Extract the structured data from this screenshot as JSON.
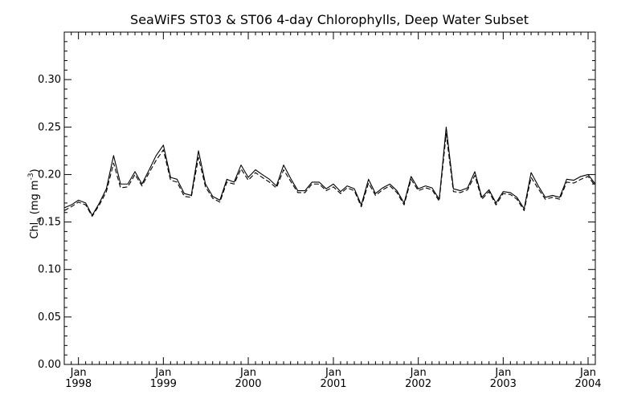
{
  "chart_data": {
    "type": "line",
    "title": "SeaWiFS ST03 & ST06 4-day Chlorophylls, Deep Water Subset",
    "ylabel": "Chl",
    "ylabel_sub": "a",
    "ylabel_units_open": "(mg m",
    "ylabel_units_sup": "-3",
    "ylabel_units_close": ")",
    "xlim": [
      "1997-11-01",
      "2004-02-01"
    ],
    "ylim": [
      0.0,
      0.35
    ],
    "grid": false,
    "y_ticks": [
      {
        "value": 0.0,
        "label": "0.00"
      },
      {
        "value": 0.05,
        "label": "0.05"
      },
      {
        "value": 0.1,
        "label": "0.10"
      },
      {
        "value": 0.15,
        "label": "0.15"
      },
      {
        "value": 0.2,
        "label": "0.20"
      },
      {
        "value": 0.25,
        "label": "0.25"
      },
      {
        "value": 0.3,
        "label": "0.30"
      }
    ],
    "x_ticks": [
      {
        "date": "1998-01-01",
        "month": "Jan",
        "year": "1998"
      },
      {
        "date": "1999-01-01",
        "month": "Jan",
        "year": "1999"
      },
      {
        "date": "2000-01-01",
        "month": "Jan",
        "year": "2000"
      },
      {
        "date": "2001-01-01",
        "month": "Jan",
        "year": "2001"
      },
      {
        "date": "2002-01-01",
        "month": "Jan",
        "year": "2002"
      },
      {
        "date": "2003-01-01",
        "month": "Jan",
        "year": "2003"
      },
      {
        "date": "2004-01-01",
        "month": "Jan",
        "year": "2004"
      }
    ],
    "series": [
      {
        "style": "solid",
        "color": "#000000",
        "x": [
          "1997-11-01",
          "1997-12-01",
          "1998-01-01",
          "1998-02-01",
          "1998-03-01",
          "1998-04-01",
          "1998-05-01",
          "1998-06-01",
          "1998-07-01",
          "1998-08-01",
          "1998-09-01",
          "1998-10-01",
          "1998-11-01",
          "1998-12-01",
          "1999-01-01",
          "1999-02-01",
          "1999-03-01",
          "1999-04-01",
          "1999-05-01",
          "1999-06-01",
          "1999-07-01",
          "1999-08-01",
          "1999-09-01",
          "1999-10-01",
          "1999-11-01",
          "1999-12-01",
          "2000-01-01",
          "2000-02-01",
          "2000-03-01",
          "2000-04-01",
          "2000-05-01",
          "2000-06-01",
          "2000-07-01",
          "2000-08-01",
          "2000-09-01",
          "2000-10-01",
          "2000-11-01",
          "2000-12-01",
          "2001-01-01",
          "2001-02-01",
          "2001-03-01",
          "2001-04-01",
          "2001-05-01",
          "2001-06-01",
          "2001-07-01",
          "2001-08-01",
          "2001-09-01",
          "2001-10-01",
          "2001-11-01",
          "2001-12-01",
          "2002-01-01",
          "2002-02-01",
          "2002-03-01",
          "2002-04-01",
          "2002-05-01",
          "2002-06-01",
          "2002-07-01",
          "2002-08-01",
          "2002-09-01",
          "2002-10-01",
          "2002-11-01",
          "2002-12-01",
          "2003-01-01",
          "2003-02-01",
          "2003-03-01",
          "2003-04-01",
          "2003-05-01",
          "2003-06-01",
          "2003-07-01",
          "2003-08-01",
          "2003-09-01",
          "2003-10-01",
          "2003-11-01",
          "2003-12-01",
          "2004-01-01",
          "2004-02-01"
        ],
        "y": [
          0.165,
          0.168,
          0.173,
          0.17,
          0.157,
          0.17,
          0.185,
          0.22,
          0.19,
          0.19,
          0.203,
          0.19,
          0.205,
          0.22,
          0.231,
          0.197,
          0.195,
          0.18,
          0.178,
          0.225,
          0.19,
          0.177,
          0.173,
          0.195,
          0.192,
          0.21,
          0.197,
          0.205,
          0.2,
          0.195,
          0.188,
          0.21,
          0.196,
          0.183,
          0.183,
          0.192,
          0.192,
          0.185,
          0.19,
          0.182,
          0.188,
          0.185,
          0.168,
          0.195,
          0.18,
          0.186,
          0.19,
          0.183,
          0.17,
          0.198,
          0.185,
          0.188,
          0.186,
          0.174,
          0.25,
          0.185,
          0.183,
          0.186,
          0.203,
          0.176,
          0.184,
          0.17,
          0.182,
          0.181,
          0.176,
          0.164,
          0.202,
          0.188,
          0.176,
          0.178,
          0.176,
          0.195,
          0.194,
          0.198,
          0.2,
          0.19
        ]
      },
      {
        "style": "dashed",
        "color": "#000000",
        "x": [
          "1997-11-01",
          "1997-12-01",
          "1998-01-01",
          "1998-02-01",
          "1998-03-01",
          "1998-04-01",
          "1998-05-01",
          "1998-06-01",
          "1998-07-01",
          "1998-08-01",
          "1998-09-01",
          "1998-10-01",
          "1998-11-01",
          "1998-12-01",
          "1999-01-01",
          "1999-02-01",
          "1999-03-01",
          "1999-04-01",
          "1999-05-01",
          "1999-06-01",
          "1999-07-01",
          "1999-08-01",
          "1999-09-01",
          "1999-10-01",
          "1999-11-01",
          "1999-12-01",
          "2000-01-01",
          "2000-02-01",
          "2000-03-01",
          "2000-04-01",
          "2000-05-01",
          "2000-06-01",
          "2000-07-01",
          "2000-08-01",
          "2000-09-01",
          "2000-10-01",
          "2000-11-01",
          "2000-12-01",
          "2001-01-01",
          "2001-02-01",
          "2001-03-01",
          "2001-04-01",
          "2001-05-01",
          "2001-06-01",
          "2001-07-01",
          "2001-08-01",
          "2001-09-01",
          "2001-10-01",
          "2001-11-01",
          "2001-12-01",
          "2002-01-01",
          "2002-02-01",
          "2002-03-01",
          "2002-04-01",
          "2002-05-01",
          "2002-06-01",
          "2002-07-01",
          "2002-08-01",
          "2002-09-01",
          "2002-10-01",
          "2002-11-01",
          "2002-12-01",
          "2003-01-01",
          "2003-02-01",
          "2003-03-01",
          "2003-04-01",
          "2003-05-01",
          "2003-06-01",
          "2003-07-01",
          "2003-08-01",
          "2003-09-01",
          "2003-10-01",
          "2003-11-01",
          "2003-12-01",
          "2004-01-01",
          "2004-02-01"
        ],
        "y": [
          0.162,
          0.166,
          0.171,
          0.168,
          0.156,
          0.168,
          0.182,
          0.212,
          0.186,
          0.187,
          0.2,
          0.188,
          0.202,
          0.215,
          0.226,
          0.194,
          0.192,
          0.177,
          0.176,
          0.218,
          0.187,
          0.175,
          0.171,
          0.192,
          0.19,
          0.206,
          0.194,
          0.202,
          0.197,
          0.192,
          0.186,
          0.205,
          0.193,
          0.181,
          0.181,
          0.19,
          0.19,
          0.183,
          0.187,
          0.18,
          0.186,
          0.183,
          0.166,
          0.191,
          0.178,
          0.184,
          0.188,
          0.181,
          0.168,
          0.195,
          0.183,
          0.186,
          0.184,
          0.172,
          0.243,
          0.182,
          0.181,
          0.184,
          0.199,
          0.174,
          0.182,
          0.168,
          0.18,
          0.179,
          0.174,
          0.162,
          0.197,
          0.185,
          0.174,
          0.176,
          0.174,
          0.192,
          0.191,
          0.195,
          0.198,
          0.188
        ]
      }
    ]
  }
}
